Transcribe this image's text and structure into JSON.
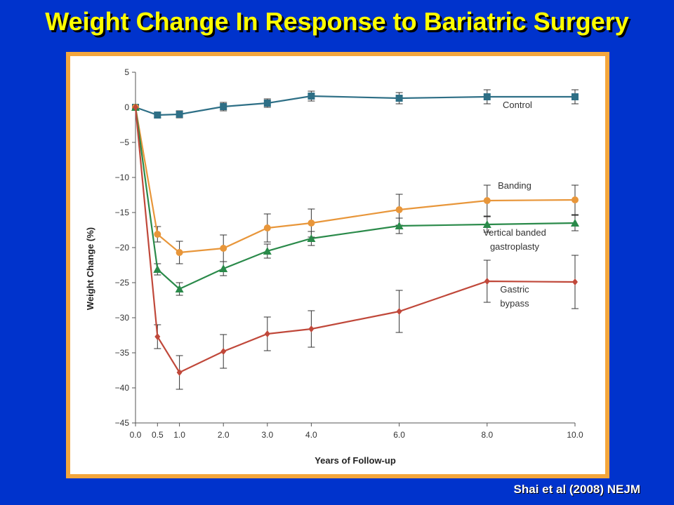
{
  "slide": {
    "title": "Weight Change In Response to Bariatric Surgery",
    "citation": "Shai et al (2008) NEJM"
  },
  "chart_data": {
    "type": "line",
    "xlabel": "Years of Follow-up",
    "ylabel": "Weight Change (%)",
    "ylim": [
      -45,
      5
    ],
    "x": [
      0.0,
      0.5,
      1.0,
      2.0,
      3.0,
      4.0,
      6.0,
      8.0,
      10.0
    ],
    "x_tick_labels": [
      "0.0",
      "0.5",
      "1.0",
      "2.0",
      "3.0",
      "4.0",
      "6.0",
      "8.0",
      "10.0"
    ],
    "y_ticks": [
      5,
      0,
      -5,
      -10,
      -15,
      -20,
      -25,
      -30,
      -35,
      -40,
      -45
    ],
    "y_tick_labels": [
      "5",
      "0",
      "−5",
      "−10",
      "−15",
      "−20",
      "−25",
      "−30",
      "−35",
      "−40",
      "−45"
    ],
    "grid": false,
    "legend": "inline labels at right",
    "series": [
      {
        "name": "Control",
        "label_lines": [
          "Control"
        ],
        "color": "#2e6f86",
        "marker": "square",
        "values": [
          0,
          -1.1,
          -1.0,
          0.1,
          0.6,
          1.6,
          1.3,
          1.5,
          1.5
        ],
        "errors": [
          0,
          0.4,
          0.5,
          0.6,
          0.6,
          0.7,
          0.8,
          1.0,
          1.0
        ]
      },
      {
        "name": "Banding",
        "label_lines": [
          "Banding"
        ],
        "color": "#e8963a",
        "marker": "circle",
        "values": [
          0,
          -18.1,
          -20.7,
          -20.1,
          -17.2,
          -16.5,
          -14.6,
          -13.3,
          -13.2
        ],
        "errors": [
          0,
          1.1,
          1.6,
          1.9,
          2.0,
          2.0,
          2.2,
          2.2,
          2.1
        ]
      },
      {
        "name": "Vertical banded gastroplasty",
        "label_lines": [
          "Vertical banded",
          "gastroplasty"
        ],
        "color": "#2a8a4a",
        "marker": "triangle",
        "values": [
          0,
          -23.1,
          -25.9,
          -23.0,
          -20.5,
          -18.7,
          -16.9,
          -16.7,
          -16.5
        ],
        "errors": [
          0,
          0.8,
          0.9,
          1.0,
          1.0,
          1.0,
          1.1,
          1.1,
          1.1
        ]
      },
      {
        "name": "Gastric bypass",
        "label_lines": [
          "Gastric",
          "bypass"
        ],
        "color": "#c0483a",
        "marker": "diamond",
        "values": [
          0,
          -32.7,
          -37.8,
          -34.8,
          -32.3,
          -31.6,
          -29.1,
          -24.8,
          -24.9
        ],
        "errors": [
          0,
          1.7,
          2.4,
          2.4,
          2.4,
          2.6,
          3.0,
          3.0,
          3.8
        ]
      }
    ]
  }
}
